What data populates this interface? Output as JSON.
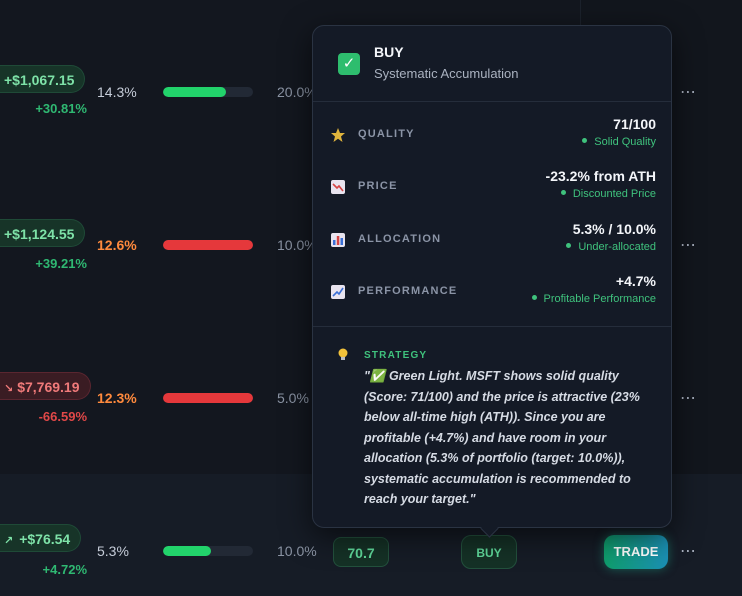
{
  "rows": [
    {
      "pnl": "+$1,067.15",
      "pnl_pct": "+30.81%",
      "alloc": "14.3%",
      "bar_fill": 0.7,
      "bar_color": "green",
      "target": "20.0%"
    },
    {
      "pnl": "+$1,124.55",
      "pnl_pct": "+39.21%",
      "alloc": "12.6%",
      "bar_fill": 1.0,
      "bar_color": "red",
      "target": "10.0%"
    },
    {
      "pnl": "$7,769.19",
      "pnl_pct": "-66.59%",
      "alloc": "12.3%",
      "bar_fill": 1.0,
      "bar_color": "red",
      "target": "5.0%"
    },
    {
      "pnl": "+$76.54",
      "pnl_pct": "+4.72%",
      "alloc": "5.3%",
      "bar_fill": 0.53,
      "bar_color": "green",
      "target": "10.0%",
      "score": "70.7",
      "signal": "BUY",
      "action": "TRADE"
    }
  ],
  "more_icon": "⋯",
  "tooltip": {
    "signal": "BUY",
    "subtitle": "Systematic Accumulation",
    "check_icon": "✓",
    "metrics": [
      {
        "icon": "star-icon",
        "label": "QUALITY",
        "value": "71/100",
        "note": "Solid Quality"
      },
      {
        "icon": "price-chart-icon",
        "label": "PRICE",
        "value": "-23.2% from ATH",
        "note": "Discounted Price"
      },
      {
        "icon": "bar-chart-icon",
        "label": "ALLOCATION",
        "value": "5.3% / 10.0%",
        "note": "Under-allocated"
      },
      {
        "icon": "line-chart-icon",
        "label": "PERFORMANCE",
        "value": "+4.7%",
        "note": "Profitable Performance"
      }
    ],
    "strategy_label": "STRATEGY",
    "strategy_text": "\"✅ Green Light. MSFT shows solid quality (Score: 71/100) and the price is attractive (23% below all-time high (ATH)). Since you are profitable (+4.7%) and have room in your allocation (5.3% of portfolio (target: 10.0%)), systematic accumulation is recommended to reach your target.\""
  },
  "colors": {
    "accent_green": "#3fc27d",
    "bar_green": "#22d36b",
    "bar_red": "#e5383b",
    "alloc_orange": "#ff8a3d",
    "loss_red": "#e04848"
  }
}
